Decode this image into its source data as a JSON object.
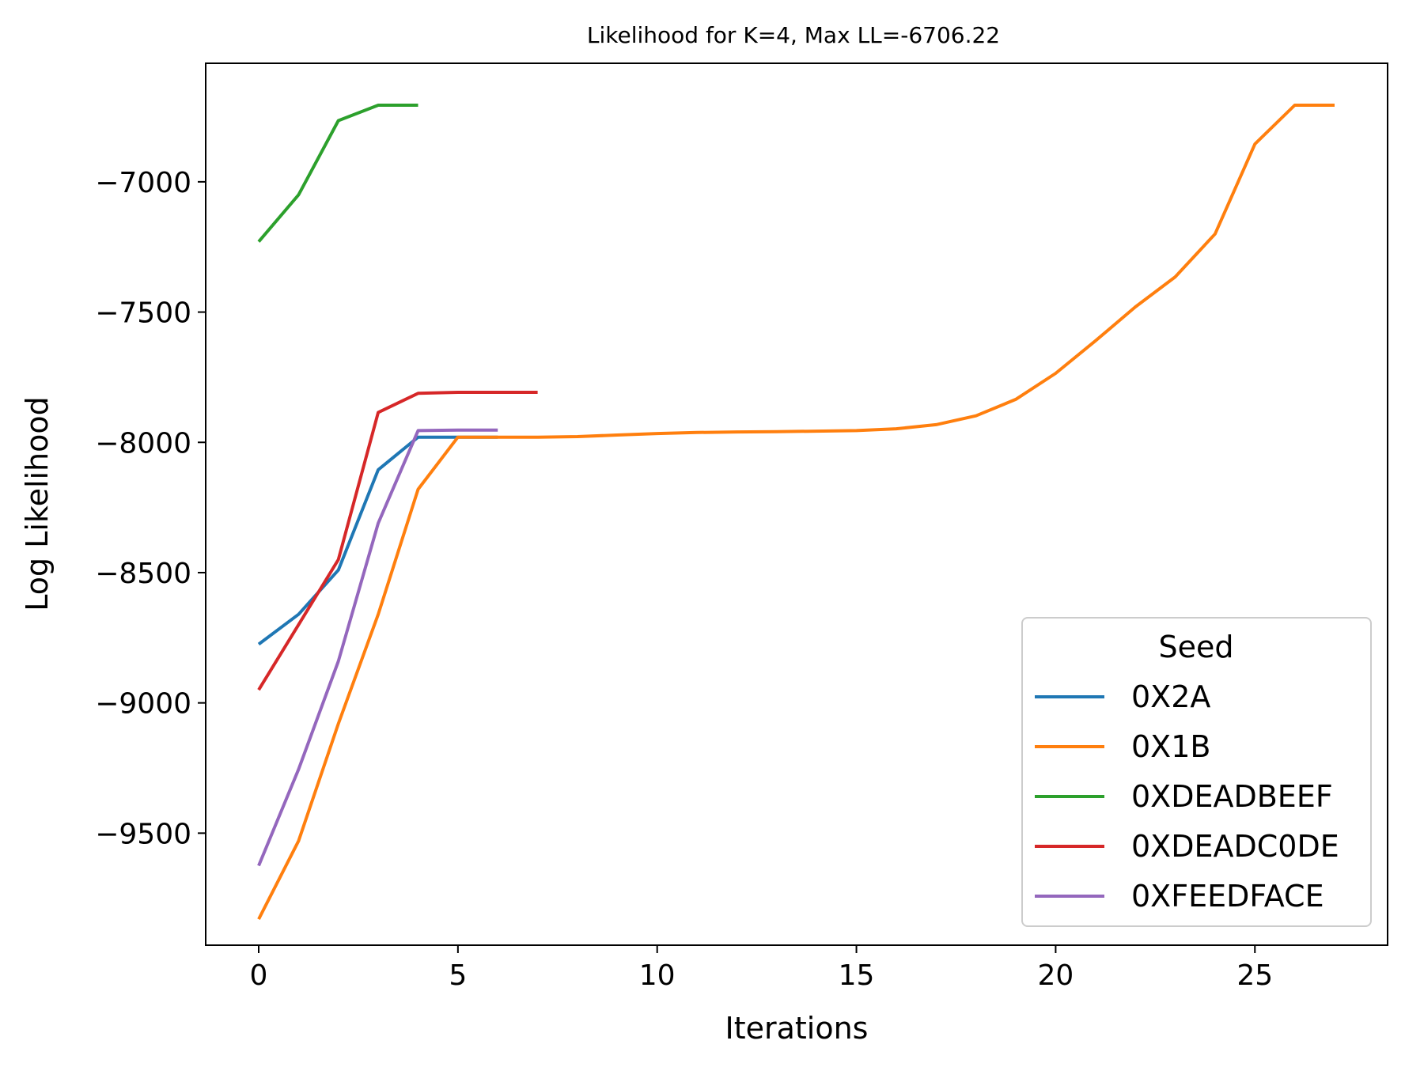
{
  "chart_data": {
    "type": "line",
    "title": "Likelihood for K=4,  Max LL=-6706.22",
    "xlabel": "Iterations",
    "ylabel": "Log Likelihood",
    "xlim": [
      -1.33,
      28.33
    ],
    "ylim": [
      -9930,
      -6545
    ],
    "xticks": [
      0,
      5,
      10,
      15,
      20,
      25
    ],
    "yticks": [
      -9500,
      -9000,
      -8500,
      -8000,
      -7500,
      -7000
    ],
    "xtick_labels": [
      "0",
      "5",
      "10",
      "15",
      "20",
      "25"
    ],
    "ytick_labels": [
      "−9500",
      "−9000",
      "−8500",
      "−8000",
      "−7500",
      "−7000"
    ],
    "grid": false,
    "legend": {
      "title": "Seed",
      "placement": "lower-right"
    },
    "series": [
      {
        "name": "0X2A",
        "color": "#1f77b4",
        "x": [
          0,
          1,
          2,
          3,
          4,
          5,
          6
        ],
        "y": [
          -8775,
          -8660,
          -8490,
          -8105,
          -7980,
          -7980,
          -7980
        ]
      },
      {
        "name": "0X1B",
        "color": "#ff7f0e",
        "x": [
          0,
          1,
          2,
          3,
          4,
          5,
          6,
          7,
          8,
          9,
          10,
          11,
          12,
          13,
          14,
          15,
          16,
          17,
          18,
          19,
          20,
          21,
          22,
          23,
          24,
          25,
          26,
          27
        ],
        "y": [
          -9830,
          -9530,
          -9080,
          -8660,
          -8180,
          -7980,
          -7980,
          -7980,
          -7978,
          -7972,
          -7966,
          -7962,
          -7960,
          -7959,
          -7957,
          -7955,
          -7948,
          -7932,
          -7898,
          -7835,
          -7735,
          -7610,
          -7480,
          -7365,
          -7200,
          -6855,
          -6706,
          -6706
        ]
      },
      {
        "name": "0XDEADBEEF",
        "color": "#2ca02c",
        "x": [
          0,
          1,
          2,
          3,
          4
        ],
        "y": [
          -7230,
          -7050,
          -6765,
          -6706,
          -6706
        ]
      },
      {
        "name": "0XDEADC0DE",
        "color": "#d62728",
        "x": [
          0,
          1,
          2,
          3,
          4,
          5,
          6,
          7
        ],
        "y": [
          -8950,
          -8700,
          -8450,
          -7885,
          -7812,
          -7808,
          -7808,
          -7808
        ]
      },
      {
        "name": "0XFEEDFACE",
        "color": "#9467bd",
        "x": [
          0,
          1,
          2,
          3,
          4,
          5,
          6
        ],
        "y": [
          -9625,
          -9255,
          -8840,
          -8310,
          -7955,
          -7953,
          -7953
        ]
      }
    ]
  }
}
